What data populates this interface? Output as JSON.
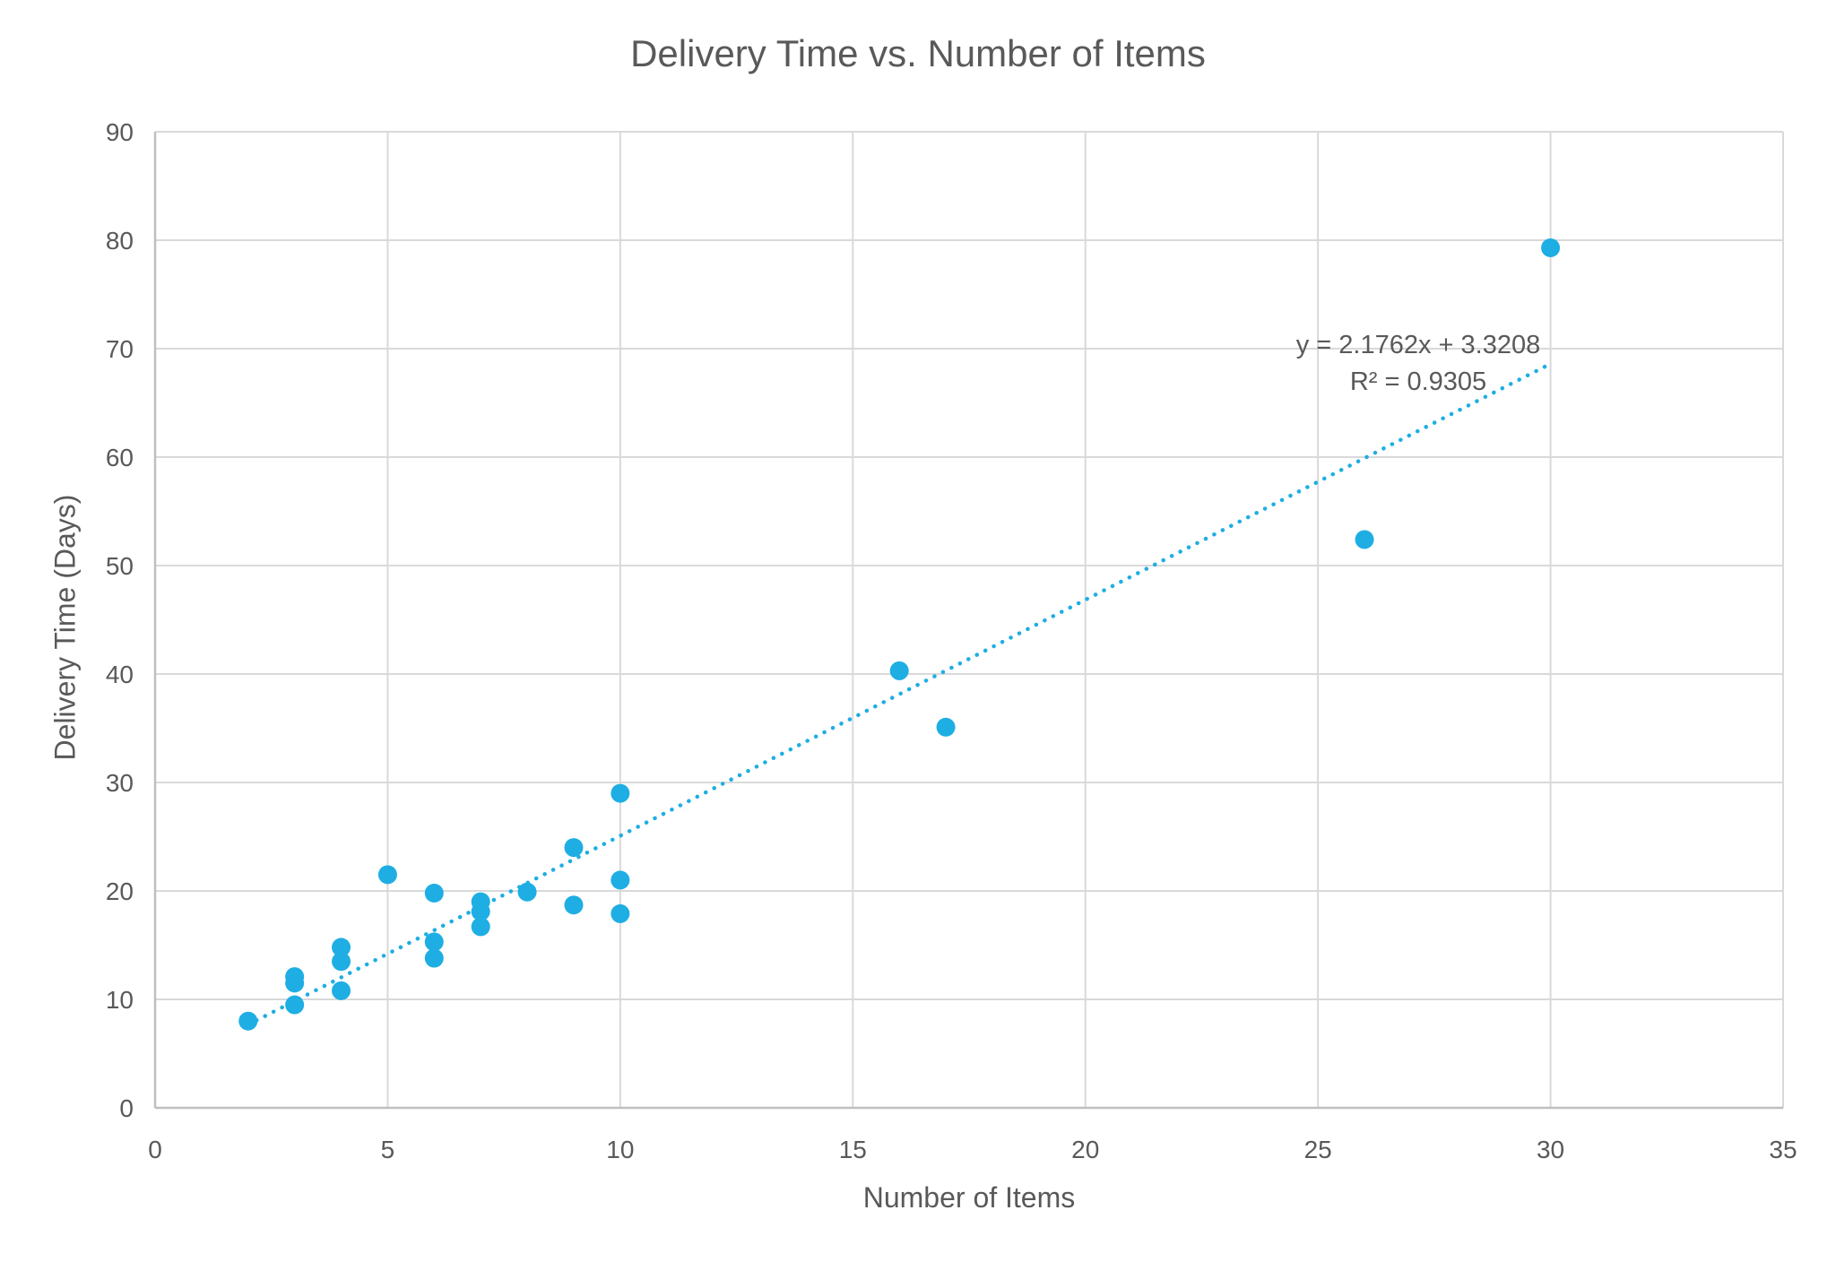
{
  "chart_data": {
    "type": "scatter",
    "title": "Delivery Time vs. Number of Items",
    "xlabel": "Number of Items",
    "ylabel": "Delivery Time (Days)",
    "xlim": [
      0,
      35
    ],
    "ylim": [
      0,
      90
    ],
    "x_ticks": [
      0,
      5,
      10,
      15,
      20,
      25,
      30,
      35
    ],
    "y_ticks": [
      0,
      10,
      20,
      30,
      40,
      50,
      60,
      70,
      80,
      90
    ],
    "grid": true,
    "legend": null,
    "series": [
      {
        "name": "Delivery Time",
        "color": "#1EAEE3",
        "points": [
          {
            "x": 2,
            "y": 8.0
          },
          {
            "x": 3,
            "y": 9.5
          },
          {
            "x": 3,
            "y": 11.5
          },
          {
            "x": 3,
            "y": 12.1
          },
          {
            "x": 4,
            "y": 10.8
          },
          {
            "x": 4,
            "y": 13.5
          },
          {
            "x": 4,
            "y": 14.8
          },
          {
            "x": 5,
            "y": 21.5
          },
          {
            "x": 6,
            "y": 13.8
          },
          {
            "x": 6,
            "y": 15.3
          },
          {
            "x": 6,
            "y": 19.8
          },
          {
            "x": 7,
            "y": 16.7
          },
          {
            "x": 7,
            "y": 18.1
          },
          {
            "x": 7,
            "y": 19.0
          },
          {
            "x": 8,
            "y": 19.9
          },
          {
            "x": 9,
            "y": 18.7
          },
          {
            "x": 9,
            "y": 24.0
          },
          {
            "x": 10,
            "y": 17.9
          },
          {
            "x": 10,
            "y": 21.0
          },
          {
            "x": 10,
            "y": 29.0
          },
          {
            "x": 16,
            "y": 40.3
          },
          {
            "x": 17,
            "y": 35.1
          },
          {
            "x": 26,
            "y": 52.4
          },
          {
            "x": 30,
            "y": 79.3
          }
        ]
      }
    ],
    "trendline": {
      "type": "linear",
      "style": "dotted",
      "color": "#1EAEE3",
      "slope": 2.1762,
      "intercept": 3.3208,
      "x_range": [
        2,
        30
      ],
      "equation_label": "y = 2.1762x + 3.3208",
      "r_squared_label": "R² = 0.9305",
      "r_squared": 0.9305
    },
    "colors": {
      "grid": "#D9D9D9",
      "text": "#595959",
      "marker": "#1EAEE3"
    }
  }
}
